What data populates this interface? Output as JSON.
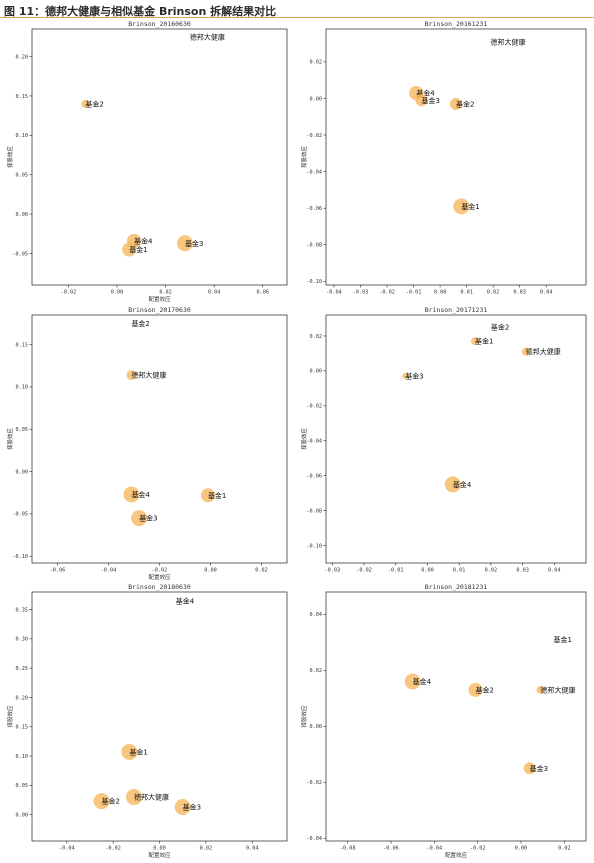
{
  "figure": {
    "title": "图 11：德邦大健康与相似基金 Brinson 拆解结果对比"
  },
  "colors": {
    "point": "#f6b85e",
    "rule": "#e9a25c"
  },
  "chart_data": [
    {
      "type": "scatter",
      "title": "Brinson_20160630",
      "xlabel": "配置效应",
      "ylabel": "择股效应",
      "xlim": [
        -0.035,
        0.07
      ],
      "ylim": [
        -0.09,
        0.235
      ],
      "xticks": [
        -0.02,
        0.0,
        0.02,
        0.04,
        0.06
      ],
      "yticks": [
        -0.05,
        0.0,
        0.05,
        0.1,
        0.15,
        0.2
      ],
      "xtick_labels": [
        "-0.02",
        "0.00",
        "0.02",
        "0.04",
        "0.06"
      ],
      "ytick_labels": [
        "-0.05",
        "0.00",
        "0.05",
        "0.10",
        "0.15",
        "0.20"
      ],
      "points": [
        {
          "label": "基金2",
          "x": -0.013,
          "y": 0.14,
          "size": 4
        },
        {
          "label": "基金4",
          "x": 0.007,
          "y": -0.034,
          "size": 7
        },
        {
          "label": "基金1",
          "x": 0.005,
          "y": -0.045,
          "size": 7
        },
        {
          "label": "基金3",
          "x": 0.028,
          "y": -0.037,
          "size": 8
        },
        {
          "label": "德邦大健康",
          "x": 0.03,
          "y": 0.225,
          "size": 0
        }
      ]
    },
    {
      "type": "scatter",
      "title": "Brinson_20161231",
      "xlabel": "",
      "ylabel": "择股效应",
      "xlim": [
        -0.043,
        0.055
      ],
      "ylim": [
        -0.102,
        0.038
      ],
      "xticks": [
        -0.04,
        -0.03,
        -0.02,
        -0.01,
        0.0,
        0.01,
        0.02,
        0.03,
        0.04
      ],
      "yticks": [
        -0.1,
        -0.08,
        -0.06,
        -0.04,
        -0.02,
        0.0,
        0.02
      ],
      "xtick_labels": [
        "-0.04",
        "-0.03",
        "-0.02",
        "-0.01",
        "0.00",
        "0.01",
        "0.02",
        "0.03",
        "0.04"
      ],
      "ytick_labels": [
        "-0.10",
        "-0.08",
        "-0.06",
        "-0.04",
        "-0.02",
        "0.00",
        "0.02"
      ],
      "points": [
        {
          "label": "基金4",
          "x": -0.009,
          "y": 0.003,
          "size": 7
        },
        {
          "label": "基金3",
          "x": -0.007,
          "y": -0.001,
          "size": 6
        },
        {
          "label": "基金2",
          "x": 0.006,
          "y": -0.003,
          "size": 6
        },
        {
          "label": "基金1",
          "x": 0.008,
          "y": -0.059,
          "size": 8
        },
        {
          "label": "德邦大健康",
          "x": 0.019,
          "y": 0.031,
          "size": 0
        }
      ]
    },
    {
      "type": "scatter",
      "title": "Brinson_20170630",
      "xlabel": "配置效应",
      "ylabel": "择股效应",
      "xlim": [
        -0.07,
        0.03
      ],
      "ylim": [
        -0.108,
        0.185
      ],
      "xticks": [
        -0.06,
        -0.04,
        -0.02,
        0.0,
        0.02
      ],
      "yticks": [
        -0.1,
        -0.05,
        0.0,
        0.05,
        0.1,
        0.15
      ],
      "xtick_labels": [
        "-0.06",
        "-0.04",
        "-0.02",
        "0.00",
        "0.02"
      ],
      "ytick_labels": [
        "-0.10",
        "-0.05",
        "0.00",
        "0.05",
        "0.10",
        "0.15"
      ],
      "points": [
        {
          "label": "德邦大健康",
          "x": -0.031,
          "y": 0.114,
          "size": 5
        },
        {
          "label": "基金4",
          "x": -0.031,
          "y": -0.027,
          "size": 8
        },
        {
          "label": "基金1",
          "x": -0.001,
          "y": -0.028,
          "size": 7
        },
        {
          "label": "基金3",
          "x": -0.028,
          "y": -0.055,
          "size": 8
        },
        {
          "label": "基金2",
          "x": -0.031,
          "y": 0.175,
          "size": 0
        }
      ]
    },
    {
      "type": "scatter",
      "title": "Brinson_20171231",
      "xlabel": "",
      "ylabel": "择股效应",
      "xlim": [
        -0.032,
        0.05
      ],
      "ylim": [
        -0.11,
        0.032
      ],
      "xticks": [
        -0.03,
        -0.02,
        -0.01,
        0.0,
        0.01,
        0.02,
        0.03,
        0.04
      ],
      "yticks": [
        -0.1,
        -0.08,
        -0.06,
        -0.04,
        -0.02,
        0.0,
        0.02
      ],
      "xtick_labels": [
        "-0.03",
        "-0.02",
        "-0.01",
        "0.00",
        "0.01",
        "0.02",
        "0.03",
        "0.04"
      ],
      "ytick_labels": [
        "-0.10",
        "-0.08",
        "-0.06",
        "-0.04",
        "-0.02",
        "0.00",
        "0.02"
      ],
      "points": [
        {
          "label": "基金1",
          "x": 0.015,
          "y": 0.017,
          "size": 4
        },
        {
          "label": "德邦大健康",
          "x": 0.031,
          "y": 0.011,
          "size": 4
        },
        {
          "label": "基金3",
          "x": -0.007,
          "y": -0.003,
          "size": 3
        },
        {
          "label": "基金4",
          "x": 0.008,
          "y": -0.065,
          "size": 8
        },
        {
          "label": "基金2",
          "x": 0.02,
          "y": 0.025,
          "size": 0
        }
      ]
    },
    {
      "type": "scatter",
      "title": "Brinson_20180630",
      "xlabel": "配置效应",
      "ylabel": "择股效应",
      "xlim": [
        -0.055,
        0.055
      ],
      "ylim": [
        -0.045,
        0.38
      ],
      "xticks": [
        -0.04,
        -0.02,
        0.0,
        0.02,
        0.04
      ],
      "yticks": [
        0.0,
        0.05,
        0.1,
        0.15,
        0.2,
        0.25,
        0.3,
        0.35
      ],
      "xtick_labels": [
        "-0.04",
        "-0.02",
        "0.00",
        "0.02",
        "0.04"
      ],
      "ytick_labels": [
        "0.00",
        "0.05",
        "0.10",
        "0.15",
        "0.20",
        "0.25",
        "0.30",
        "0.35"
      ],
      "points": [
        {
          "label": "基金1",
          "x": -0.013,
          "y": 0.107,
          "size": 8
        },
        {
          "label": "德邦大健康",
          "x": -0.011,
          "y": 0.03,
          "size": 8
        },
        {
          "label": "基金2",
          "x": -0.025,
          "y": 0.023,
          "size": 8
        },
        {
          "label": "基金3",
          "x": 0.01,
          "y": 0.013,
          "size": 8
        },
        {
          "label": "基金4",
          "x": 0.007,
          "y": 0.365,
          "size": 0
        }
      ]
    },
    {
      "type": "scatter",
      "title": "Brinson_20181231",
      "xlabel": "配置效应",
      "ylabel": "择股效应",
      "xlim": [
        -0.09,
        0.03
      ],
      "ylim": [
        -0.041,
        0.048
      ],
      "xticks": [
        -0.08,
        -0.06,
        -0.04,
        -0.02,
        0.0,
        0.02
      ],
      "yticks": [
        -0.04,
        -0.02,
        0.0,
        0.02,
        0.04
      ],
      "xtick_labels": [
        "-0.08",
        "-0.06",
        "-0.04",
        "-0.02",
        "0.00",
        "0.02"
      ],
      "ytick_labels": [
        "-0.04",
        "-0.02",
        "0.00",
        "0.02",
        "0.04"
      ],
      "points": [
        {
          "label": "基金4",
          "x": -0.05,
          "y": 0.016,
          "size": 8
        },
        {
          "label": "基金2",
          "x": -0.021,
          "y": 0.013,
          "size": 7
        },
        {
          "label": "德邦大健康",
          "x": 0.009,
          "y": 0.013,
          "size": 4
        },
        {
          "label": "基金3",
          "x": 0.004,
          "y": -0.015,
          "size": 6
        },
        {
          "label": "基金1",
          "x": 0.015,
          "y": 0.031,
          "size": 0
        }
      ]
    }
  ]
}
